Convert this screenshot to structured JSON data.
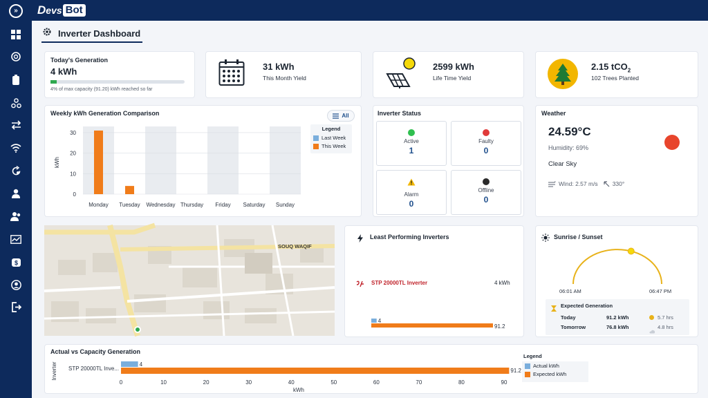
{
  "app": {
    "logo_d": "D",
    "logo_evs": "evs",
    "logo_bot": "Bot"
  },
  "page": {
    "title": "Inverter Dashboard"
  },
  "sidebar": {
    "items": [
      {
        "icon": "dashboard-grid-icon"
      },
      {
        "icon": "globe-icon"
      },
      {
        "icon": "battery-icon"
      },
      {
        "icon": "network-icon"
      },
      {
        "icon": "transfer-icon"
      },
      {
        "icon": "wifi-icon"
      },
      {
        "icon": "refresh-settings-icon"
      },
      {
        "icon": "user-icon"
      },
      {
        "icon": "users-icon"
      },
      {
        "icon": "analytics-icon"
      },
      {
        "icon": "payments-icon"
      },
      {
        "icon": "account-circle-icon"
      },
      {
        "icon": "logout-icon"
      }
    ]
  },
  "today": {
    "title": "Today's Generation",
    "value": "4 kWh",
    "progress": 0.044,
    "note": "4% of max capacity (91.20) kWh reached so far"
  },
  "month": {
    "value": "31 kWh",
    "label": "This Month Yield"
  },
  "lifetime": {
    "value": "2599 kWh",
    "label": "Life Time Yield"
  },
  "trees": {
    "value": "2.15 tCO",
    "sub": "2",
    "label": "102 Trees Planted"
  },
  "weekly": {
    "title": "Weekly kWh Generation Comparison",
    "filter_label": "All",
    "legend_title": "Legend",
    "legend_last": "Last Week",
    "legend_this": "This Week",
    "ylabel": "kWh"
  },
  "chart_data": [
    {
      "type": "bar",
      "title": "Weekly kWh Generation Comparison",
      "categories": [
        "Monday",
        "Tuesday",
        "Wednesday",
        "Thursday",
        "Friday",
        "Saturday",
        "Sunday"
      ],
      "series": [
        {
          "name": "Last Week",
          "values": [
            0,
            0,
            0,
            0,
            0,
            0,
            0
          ]
        },
        {
          "name": "This Week",
          "values": [
            31,
            4,
            0,
            0,
            0,
            0,
            0
          ]
        }
      ],
      "highlight": [
        true,
        false,
        true,
        false,
        true,
        false,
        true
      ],
      "ylabel": "kWh",
      "ylim": [
        0,
        33
      ],
      "yticks": [
        0,
        10,
        20,
        30
      ],
      "legend": "right"
    },
    {
      "type": "bar",
      "title": "Least Performing Inverters",
      "categories": [
        "STP 20000TL Inverter"
      ],
      "series": [
        {
          "name": "Actual kWh",
          "values": [
            4
          ]
        },
        {
          "name": "Expected kWh",
          "values": [
            91.2
          ]
        }
      ]
    },
    {
      "type": "bar",
      "title": "Actual vs Capacity Generation",
      "orientation": "horizontal",
      "categories": [
        "STP 20000TL Inve..."
      ],
      "series": [
        {
          "name": "Actual kWh",
          "values": [
            4
          ]
        },
        {
          "name": "Expected kWh",
          "values": [
            91.2
          ]
        }
      ],
      "xlabel": "kWh",
      "ylabel": "Inverter",
      "xlim": [
        0,
        90
      ],
      "xticks": [
        0,
        10,
        20,
        30,
        40,
        50,
        60,
        70,
        80,
        90
      ],
      "legend": "right"
    }
  ],
  "status": {
    "title": "Inverter Status",
    "active": {
      "label": "Active",
      "value": "1",
      "color": "#2fbf4f"
    },
    "faulty": {
      "label": "Faulty",
      "value": "0",
      "color": "#e03a3a"
    },
    "alarm": {
      "label": "Alarm",
      "value": "0",
      "color": "#f2b600"
    },
    "offline": {
      "label": "Offline",
      "value": "0",
      "color": "#2b2b2b"
    }
  },
  "weather": {
    "title": "Weather",
    "temp": "24.59°C",
    "humidity": "Humidity: 69%",
    "condition": "Clear Sky",
    "wind": "Wind: 2.57 m/s",
    "direction": "330°"
  },
  "map": {
    "place_label": "SOUQ WAQIF"
  },
  "least": {
    "title": "Least Performing Inverters",
    "inverter": "STP 20000TL Inverter",
    "value": "4 kWh",
    "actual_label": "4",
    "expected_label": "91.2"
  },
  "sun": {
    "title": "Sunrise / Sunset",
    "sunrise": "06:01 AM",
    "sunset": "06:47 PM",
    "position": 0.6,
    "expected_title": "Expected Generation",
    "today_label": "Today",
    "today_value": "91.2 kWh",
    "today_hours": "5.7 hrs",
    "tomorrow_label": "Tomorrow",
    "tomorrow_value": "76.8 kWh",
    "tomorrow_hours": "4.8 hrs"
  },
  "capacity": {
    "title": "Actual vs Capacity Generation",
    "category": "STP 20000TL Inve...",
    "actual_label": "4",
    "expected_label": "91.2",
    "xlabel": "kWh",
    "ylabel": "Inverter",
    "legend_title": "Legend",
    "legend_actual": "Actual kWh",
    "legend_expected": "Expected kWh"
  },
  "colors": {
    "navy": "#0d2a5c",
    "orange": "#f07c1a",
    "blue": "#7aaedc",
    "gold": "#e8b21a",
    "green": "#2fa84f"
  }
}
